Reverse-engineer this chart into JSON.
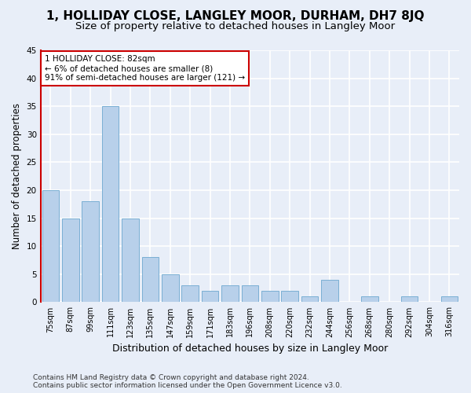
{
  "title": "1, HOLLIDAY CLOSE, LANGLEY MOOR, DURHAM, DH7 8JQ",
  "subtitle": "Size of property relative to detached houses in Langley Moor",
  "xlabel": "Distribution of detached houses by size in Langley Moor",
  "ylabel": "Number of detached properties",
  "categories": [
    "75sqm",
    "87sqm",
    "99sqm",
    "111sqm",
    "123sqm",
    "135sqm",
    "147sqm",
    "159sqm",
    "171sqm",
    "183sqm",
    "196sqm",
    "208sqm",
    "220sqm",
    "232sqm",
    "244sqm",
    "256sqm",
    "268sqm",
    "280sqm",
    "292sqm",
    "304sqm",
    "316sqm"
  ],
  "values": [
    20,
    15,
    18,
    35,
    15,
    8,
    5,
    3,
    2,
    3,
    3,
    2,
    2,
    1,
    4,
    0,
    1,
    0,
    1,
    0,
    1
  ],
  "bar_color": "#b8d0ea",
  "bar_edge_color": "#7aafd4",
  "background_color": "#e8eef8",
  "grid_color": "#ffffff",
  "annotation_text_line1": "1 HOLLIDAY CLOSE: 82sqm",
  "annotation_text_line2": "← 6% of detached houses are smaller (8)",
  "annotation_text_line3": "91% of semi-detached houses are larger (121) →",
  "annotation_box_color": "#ffffff",
  "annotation_box_edge_color": "#cc0000",
  "marker_line_color": "#cc0000",
  "ylim": [
    0,
    45
  ],
  "yticks": [
    0,
    5,
    10,
    15,
    20,
    25,
    30,
    35,
    40,
    45
  ],
  "footer_line1": "Contains HM Land Registry data © Crown copyright and database right 2024.",
  "footer_line2": "Contains public sector information licensed under the Open Government Licence v3.0.",
  "title_fontsize": 11,
  "subtitle_fontsize": 9.5,
  "tick_fontsize": 7,
  "ylabel_fontsize": 8.5,
  "xlabel_fontsize": 9,
  "annotation_fontsize": 7.5,
  "footer_fontsize": 6.5
}
